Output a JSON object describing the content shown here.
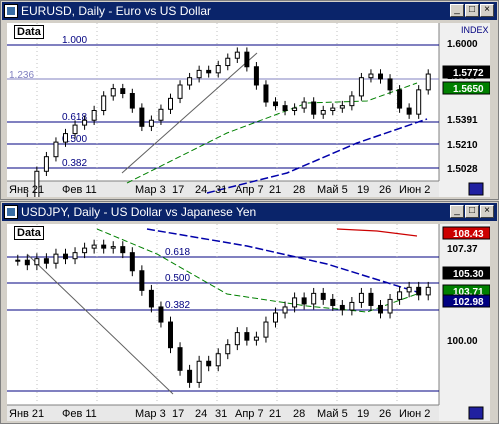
{
  "chart_data": [
    {
      "type": "ohlc",
      "title": "EURUSD, Daily - Euro vs US Dollar",
      "data_label": "Data",
      "index_label": "INDEX",
      "ylim": [
        1.49,
        1.62
      ],
      "y_tick_labels": [
        "1.6000",
        "1.5772",
        "1.5650",
        "1.5391",
        "1.5210",
        "1.5028"
      ],
      "x_tick_labels": [
        "Янв 21",
        "Фев 11",
        "Мар 3",
        "17",
        "24",
        "31",
        "Апр 7",
        "21",
        "28",
        "Май 5",
        "19",
        "26",
        "Июн 2"
      ],
      "fib_labels": [
        "1.000",
        "0.618",
        "0.500",
        "0.382"
      ],
      "partial_fib_label": "1.236",
      "price_badges": [
        {
          "value": "1.5772",
          "color": "#000000"
        },
        {
          "value": "1.5650",
          "color": "#008000"
        }
      ],
      "close_series": [
        1.448,
        1.476,
        1.498,
        1.51,
        1.522,
        1.529,
        1.536,
        1.54,
        1.548,
        1.56,
        1.566,
        1.562,
        1.55,
        1.535,
        1.54,
        1.549,
        1.558,
        1.569,
        1.575,
        1.581,
        1.579,
        1.585,
        1.591,
        1.596,
        1.584,
        1.569,
        1.555,
        1.552,
        1.548,
        1.55,
        1.555,
        1.545,
        1.548,
        1.55,
        1.552,
        1.56,
        1.575,
        1.578,
        1.574,
        1.565,
        1.55,
        1.545,
        1.565,
        1.578
      ]
    },
    {
      "type": "ohlc",
      "title": "USDJPY, Daily - US Dollar vs Japanese Yen",
      "data_label": "Data",
      "index_label": "INDEX",
      "ylim": [
        97.5,
        109.5
      ],
      "y_tick_labels": [
        "108.43",
        "107.37",
        "105.30",
        "103.71",
        "102.98",
        "100.00"
      ],
      "x_tick_labels": [
        "Янв 21",
        "Фев 11",
        "Мар 3",
        "17",
        "24",
        "31",
        "Апр 7",
        "21",
        "28",
        "Май 5",
        "19",
        "26",
        "Июн 2"
      ],
      "fib_labels": [
        "0.618",
        "0.500",
        "0.382"
      ],
      "price_badges": [
        {
          "value": "108.43",
          "color": "#cc0000"
        },
        {
          "value": "105.30",
          "color": "#000000"
        },
        {
          "value": "103.71",
          "color": "#008000"
        },
        {
          "value": "102.98",
          "color": "#000080"
        }
      ],
      "close_series": [
        107.1,
        106.8,
        107.2,
        106.9,
        107.5,
        107.2,
        107.6,
        107.9,
        108.1,
        107.9,
        108.0,
        107.6,
        106.4,
        105.1,
        104.0,
        103.0,
        101.3,
        99.8,
        99.0,
        100.4,
        100.1,
        100.9,
        101.5,
        102.3,
        101.8,
        102.0,
        103.0,
        103.6,
        104.0,
        104.6,
        104.2,
        104.9,
        104.5,
        104.1,
        103.8,
        104.3,
        104.9,
        104.1,
        103.6,
        104.5,
        105.0,
        105.3,
        104.8,
        105.3
      ]
    }
  ]
}
